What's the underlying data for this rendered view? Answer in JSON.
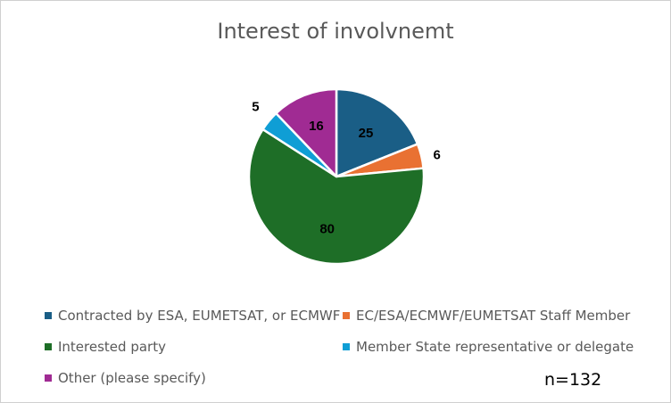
{
  "chart_data": {
    "type": "pie",
    "title": "Interest of involvnemt",
    "slices": [
      {
        "name": "Contracted by ESA, EUMETSAT, or ECMWF",
        "value": 25,
        "label": "25",
        "color": "#1a5e86"
      },
      {
        "name": "EC/ESA/ECMWF/EUMETSAT Staff Member",
        "value": 6,
        "label": "6",
        "color": "#e97132"
      },
      {
        "name": "Interested party",
        "value": 80,
        "label": "80",
        "color": "#1e6e27"
      },
      {
        "name": "Member State representative or delegate",
        "value": 5,
        "label": "5",
        "color": "#0f9ed5"
      },
      {
        "name": "Other (please specify)",
        "value": 16,
        "label": "16",
        "color": "#a02b93"
      }
    ],
    "legend_position": "bottom",
    "annotation": "n=132"
  }
}
